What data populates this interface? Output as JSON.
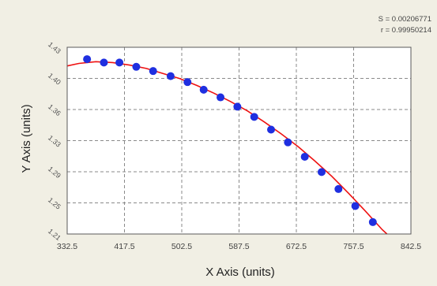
{
  "stats": {
    "s_line": "S = 0.00206771",
    "r_line": "r = 0.99950214"
  },
  "colors": {
    "background": "#f1efe4",
    "plot_area": "#ffffff",
    "grid": "#8a8a8a",
    "curve": "#ee1111",
    "points": "#1f2fe0"
  },
  "chart_data": {
    "type": "scatter",
    "xlabel": "X Axis (units)",
    "ylabel": "Y Axis (units)",
    "xlim": [
      332.5,
      842.5
    ],
    "ylim": [
      1.21,
      1.43
    ],
    "x_ticks": [
      "332.5",
      "417.5",
      "502.5",
      "587.5",
      "672.5",
      "757.5",
      "842.5"
    ],
    "y_ticks": [
      "1.21",
      "1.25",
      "1.29",
      "1.33",
      "1.36",
      "1.40",
      "1.43"
    ],
    "grid": true,
    "series": [
      {
        "kind": "points",
        "points": [
          {
            "x": 362,
            "y": 1.416
          },
          {
            "x": 387,
            "y": 1.412
          },
          {
            "x": 410,
            "y": 1.412
          },
          {
            "x": 435,
            "y": 1.407
          },
          {
            "x": 460,
            "y": 1.402
          },
          {
            "x": 486,
            "y": 1.396
          },
          {
            "x": 511,
            "y": 1.389
          },
          {
            "x": 535,
            "y": 1.38
          },
          {
            "x": 560,
            "y": 1.371
          },
          {
            "x": 585,
            "y": 1.36
          },
          {
            "x": 610,
            "y": 1.348
          },
          {
            "x": 635,
            "y": 1.333
          },
          {
            "x": 660,
            "y": 1.318
          },
          {
            "x": 685,
            "y": 1.301
          },
          {
            "x": 710,
            "y": 1.283
          },
          {
            "x": 735,
            "y": 1.263
          },
          {
            "x": 760,
            "y": 1.243
          },
          {
            "x": 786,
            "y": 1.224
          }
        ]
      },
      {
        "kind": "fit-curve",
        "points": [
          {
            "x": 332.5,
            "y": 1.408
          },
          {
            "x": 350,
            "y": 1.411
          },
          {
            "x": 375,
            "y": 1.413
          },
          {
            "x": 400,
            "y": 1.412
          },
          {
            "x": 425,
            "y": 1.409
          },
          {
            "x": 450,
            "y": 1.405
          },
          {
            "x": 475,
            "y": 1.399
          },
          {
            "x": 500,
            "y": 1.393
          },
          {
            "x": 525,
            "y": 1.385
          },
          {
            "x": 550,
            "y": 1.376
          },
          {
            "x": 575,
            "y": 1.366
          },
          {
            "x": 600,
            "y": 1.355
          },
          {
            "x": 625,
            "y": 1.342
          },
          {
            "x": 650,
            "y": 1.328
          },
          {
            "x": 675,
            "y": 1.313
          },
          {
            "x": 700,
            "y": 1.296
          },
          {
            "x": 725,
            "y": 1.278
          },
          {
            "x": 750,
            "y": 1.258
          },
          {
            "x": 775,
            "y": 1.237
          },
          {
            "x": 800,
            "y": 1.215
          },
          {
            "x": 807,
            "y": 1.21
          }
        ]
      }
    ]
  }
}
